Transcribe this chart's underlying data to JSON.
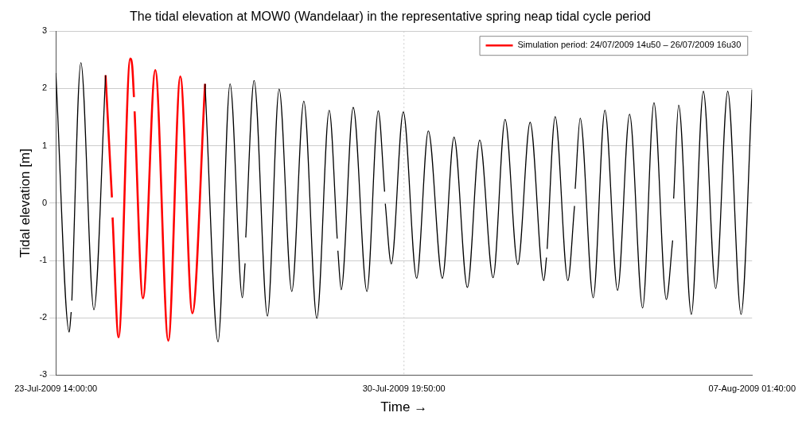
{
  "chart_data": {
    "type": "line",
    "title": "The tidal elevation at MOW0 (Wandelaar) in the representative spring neap tidal cycle period",
    "xlabel": "Time →",
    "ylabel": "Tidal elevation [m]",
    "xlim": [
      "2009-07-23T14:00",
      "2009-08-07T01:40"
    ],
    "xticks": [
      {
        "value": "2009-07-23T14:00",
        "label": "23-Jul-2009 14:00:00"
      },
      {
        "value": "2009-07-30T19:50",
        "label": "30-Jul-2009 19:50:00"
      },
      {
        "value": "2009-08-07T01:40",
        "label": "07-Aug-2009 01:40:00"
      }
    ],
    "ylim": [
      -3,
      3
    ],
    "yticks": [
      -3,
      -2,
      -1,
      0,
      1,
      2,
      3
    ],
    "grid": "y",
    "ref_lines": [
      {
        "axis": "x",
        "value": "2009-07-30T19:50",
        "color": "#cccccc",
        "line_style": "dotted"
      }
    ],
    "legend": "top right",
    "marker": "none",
    "line_style": "solid",
    "series": [
      {
        "color": "#000000",
        "x": [
          "2009-07-23T14:00",
          "2009-07-23T20:40",
          "2009-07-23T21:40",
          "2009-07-23T21:50",
          "2009-07-23T22:00",
          "2009-07-24T02:30",
          "2009-07-24T09:00",
          "2009-07-24T14:50",
          "2009-07-25T12:00",
          "2009-07-26T16:30",
          "2009-07-26T23:00",
          "2009-07-27T05:00",
          "2009-07-27T11:10",
          "2009-07-27T12:30",
          "2009-07-27T12:40",
          "2009-07-27T12:50",
          "2009-07-27T17:00",
          "2009-07-27T23:40",
          "2009-07-28T05:30",
          "2009-07-28T11:50",
          "2009-07-28T17:50",
          "2009-07-29T00:20",
          "2009-07-29T06:30",
          "2009-07-29T10:30",
          "2009-07-29T10:40",
          "2009-07-29T10:50",
          "2009-07-29T12:30",
          "2009-07-29T18:30",
          "2009-07-30T01:20",
          "2009-07-30T07:00",
          "2009-07-30T10:10",
          "2009-07-30T10:20",
          "2009-07-30T10:30",
          "2009-07-30T13:30",
          "2009-07-30T19:30",
          "2009-07-31T02:10",
          "2009-07-31T08:00",
          "2009-07-31T15:00",
          "2009-07-31T20:50",
          "2009-08-01T03:30",
          "2009-08-01T09:40",
          "2009-08-01T16:20",
          "2009-08-01T22:20",
          "2009-08-02T04:40",
          "2009-08-02T10:50",
          "2009-08-02T17:40",
          "2009-08-02T19:00",
          "2009-08-02T19:10",
          "2009-08-02T19:20",
          "2009-08-02T23:20",
          "2009-08-03T05:40",
          "2009-08-03T09:00",
          "2009-08-03T09:10",
          "2009-08-03T09:20",
          "2009-08-03T11:50",
          "2009-08-03T18:20",
          "2009-08-04T00:10",
          "2009-08-04T06:30",
          "2009-08-04T12:30",
          "2009-08-04T19:00",
          "2009-08-05T00:40",
          "2009-08-05T06:50",
          "2009-08-05T10:00",
          "2009-08-05T10:10",
          "2009-08-05T10:30",
          "2009-08-05T13:00",
          "2009-08-05T19:20",
          "2009-08-06T01:20",
          "2009-08-06T07:30",
          "2009-08-06T13:30",
          "2009-08-06T20:10",
          "2009-08-07T01:40"
        ],
        "values": [
          2.27,
          -2.25,
          -1.9,
          null,
          -1.7,
          2.45,
          -1.86,
          2.23,
          null,
          2.08,
          -2.42,
          2.08,
          -1.65,
          -1.05,
          null,
          -0.6,
          2.14,
          -1.97,
          1.99,
          -1.54,
          1.78,
          -2.01,
          1.62,
          -0.62,
          null,
          -0.83,
          -1.51,
          1.67,
          -1.54,
          1.61,
          0.2,
          null,
          -0.01,
          -1.06,
          1.59,
          -1.31,
          1.26,
          -1.31,
          1.15,
          -1.47,
          1.1,
          -1.3,
          1.46,
          -1.07,
          1.41,
          -1.35,
          -0.95,
          null,
          -0.8,
          1.51,
          -1.35,
          -0.05,
          null,
          0.25,
          1.48,
          -1.65,
          1.62,
          -1.52,
          1.55,
          -1.83,
          1.75,
          -1.68,
          -0.65,
          null,
          0.08,
          1.71,
          -1.94,
          1.95,
          -1.49,
          1.95,
          -1.94,
          1.98
        ]
      },
      {
        "name": "Simulation period: 24/07/2009 14u50 – 26/07/2009 16u30",
        "color": "#ff0000",
        "x": [
          "2009-07-24T14:50",
          "2009-07-24T18:00",
          "2009-07-24T18:10",
          "2009-07-24T18:20",
          "2009-07-24T21:20",
          "2009-07-25T03:10",
          "2009-07-25T04:10",
          "2009-07-25T05:00",
          "2009-07-25T05:10",
          "2009-07-25T05:20",
          "2009-07-25T09:30",
          "2009-07-25T15:40",
          "2009-07-25T22:10",
          "2009-07-26T04:10",
          "2009-07-26T10:10",
          "2009-07-26T16:30"
        ],
        "values": [
          2.23,
          0.1,
          null,
          -0.25,
          -2.34,
          2.52,
          2.38,
          1.85,
          null,
          1.6,
          -1.66,
          2.32,
          -2.4,
          2.21,
          -1.92,
          2.08
        ]
      }
    ]
  }
}
